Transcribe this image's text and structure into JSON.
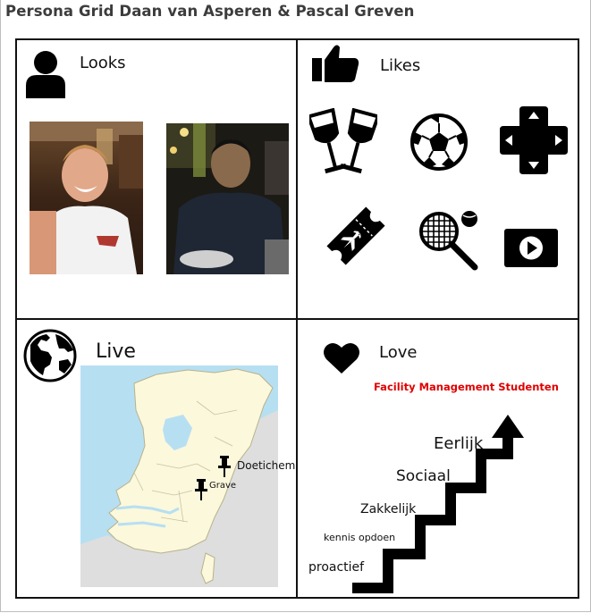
{
  "page": {
    "title": "Persona Grid Daan van Asperen & Pascal Greven"
  },
  "looks": {
    "label": "Looks",
    "icon": "person-icon",
    "photos": [
      "photo-daan",
      "photo-pascal"
    ]
  },
  "likes": {
    "label": "Likes",
    "icon": "thumbs-up-icon",
    "items": [
      "wine-glasses-icon",
      "soccer-ball-icon",
      "gamepad-icon",
      "plane-ticket-icon",
      "tennis-icon",
      "video-play-icon"
    ]
  },
  "live": {
    "label": "Live",
    "icon": "globe-icon",
    "map": "netherlands-map",
    "pins": [
      {
        "label": "Doetichem"
      },
      {
        "label": "Grave"
      }
    ]
  },
  "love": {
    "label": "Love",
    "icon": "heart-icon",
    "subtitle": "Facility Management Studenten",
    "steps": [
      "proactief",
      "kennis opdoen",
      "Zakkelijk",
      "Sociaal",
      "Eerlijk"
    ]
  },
  "colors": {
    "accent_red": "#e00000",
    "map_water": "#b7dff2",
    "map_land": "#fbf8dc",
    "map_foreign": "#dedede"
  }
}
